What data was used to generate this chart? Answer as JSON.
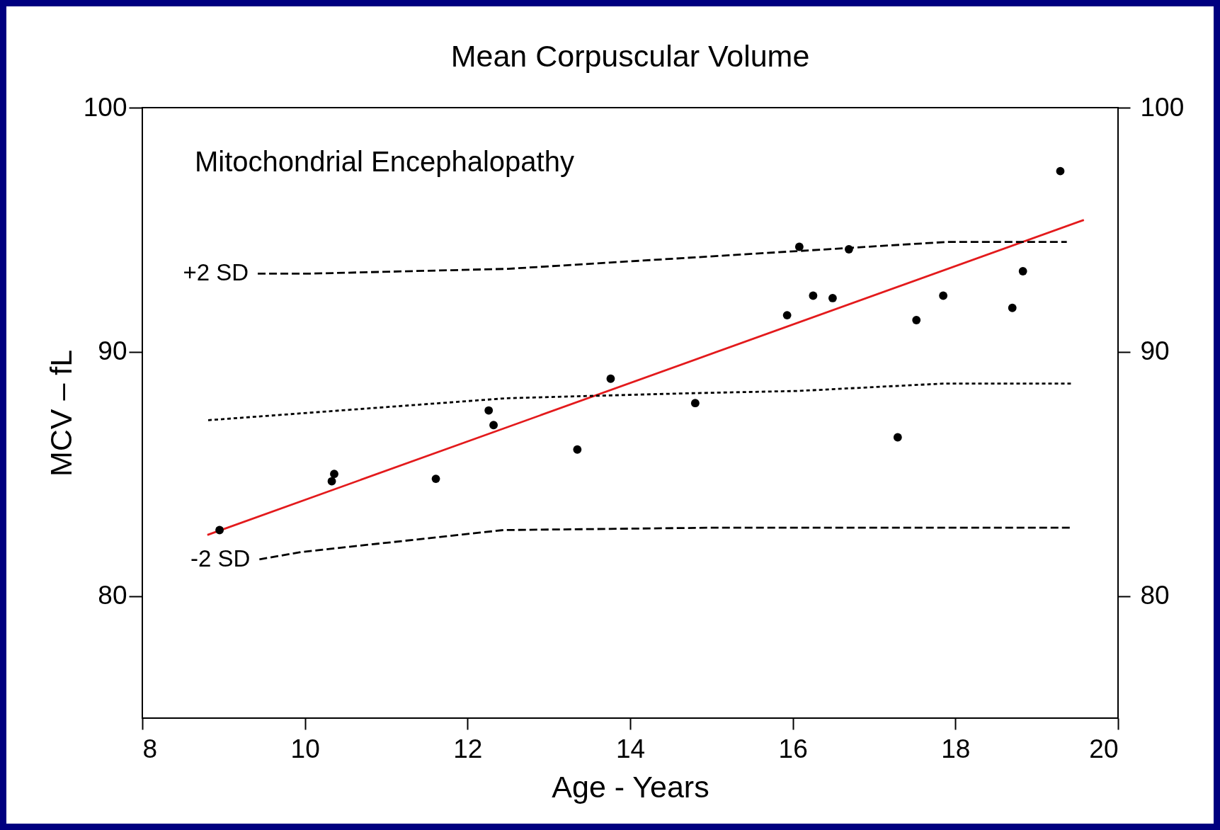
{
  "chart_data": {
    "type": "scatter",
    "title": "Mean Corpuscular Volume",
    "xlabel": "Age - Years",
    "ylabel": "MCV – fL",
    "annotations": [
      "Mitochondrial Encephalopathy"
    ],
    "xlim": [
      8,
      20
    ],
    "xticks": [
      8,
      10,
      12,
      14,
      16,
      18,
      20
    ],
    "ylim": [
      75,
      100
    ],
    "yticks": [
      80,
      90,
      100
    ],
    "y2lim": [
      75,
      100
    ],
    "y2ticks": [
      80,
      90,
      100
    ],
    "grid": false,
    "series": [
      {
        "marker": "circle",
        "color": "#000000",
        "x": [
          8.95,
          10.33,
          10.36,
          11.61,
          12.26,
          12.32,
          13.35,
          13.76,
          14.8,
          15.93,
          16.08,
          16.25,
          16.49,
          16.69,
          17.29,
          17.52,
          17.85,
          18.7,
          18.83,
          19.29
        ],
        "values": [
          82.7,
          84.7,
          85.0,
          84.8,
          87.6,
          87.0,
          86.0,
          88.9,
          87.9,
          91.5,
          94.3,
          92.3,
          92.2,
          94.2,
          86.5,
          91.3,
          92.3,
          91.8,
          93.3,
          97.4
        ]
      },
      {
        "type": "line",
        "line_style": "solid",
        "color": "#e31a1c",
        "x": [
          8.8,
          19.58
        ],
        "values": [
          82.5,
          95.4
        ]
      },
      {
        "type": "line",
        "line_style": "dashed",
        "name": "+2 SD",
        "color": "#000000",
        "x": [
          9.42,
          10.02,
          12.5,
          17.89,
          19.37
        ],
        "values": [
          93.2,
          93.2,
          93.4,
          94.5,
          94.5
        ]
      },
      {
        "type": "line",
        "line_style": "dotted",
        "color": "#000000",
        "x": [
          8.81,
          12.48,
          14.68,
          16.08,
          17.85,
          19.42
        ],
        "values": [
          87.2,
          88.1,
          88.3,
          88.4,
          88.7,
          88.7
        ]
      },
      {
        "type": "line",
        "line_style": "dashed",
        "name": "-2 SD",
        "color": "#000000",
        "x": [
          9.44,
          9.95,
          12.44,
          15.07,
          19.42
        ],
        "values": [
          81.5,
          81.8,
          82.7,
          82.8,
          82.8
        ]
      }
    ]
  }
}
